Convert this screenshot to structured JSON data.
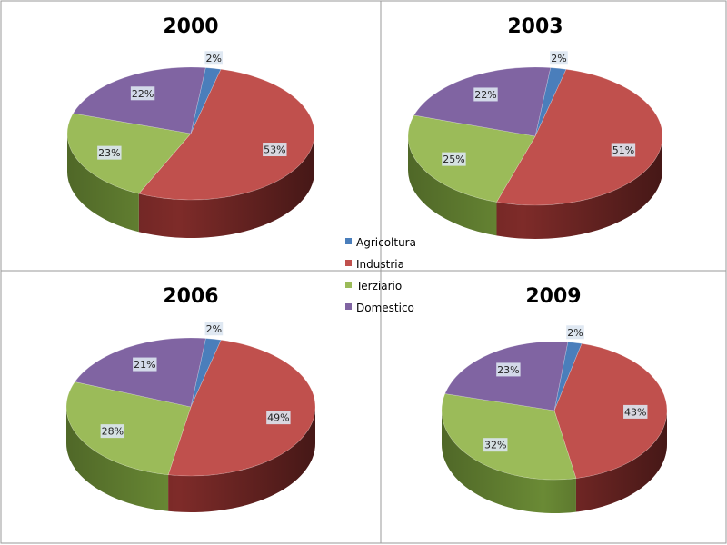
{
  "chart_data": [
    {
      "type": "pie",
      "title": "2000",
      "categories": [
        "Agricoltura",
        "Industria",
        "Terziario",
        "Domestico"
      ],
      "values": [
        2,
        53,
        23,
        22
      ],
      "labels": [
        "2%",
        "53%",
        "23%",
        "22%"
      ]
    },
    {
      "type": "pie",
      "title": "2003",
      "categories": [
        "Agricoltura",
        "Industria",
        "Terziario",
        "Domestico"
      ],
      "values": [
        2,
        51,
        25,
        22
      ],
      "labels": [
        "2%",
        "51%",
        "25%",
        "22%"
      ]
    },
    {
      "type": "pie",
      "title": "2006",
      "categories": [
        "Agricoltura",
        "Industria",
        "Terziario",
        "Domestico"
      ],
      "values": [
        2,
        49,
        28,
        21
      ],
      "labels": [
        "2%",
        "49%",
        "28%",
        "21%"
      ]
    },
    {
      "type": "pie",
      "title": "2009",
      "categories": [
        "Agricoltura",
        "Industria",
        "Terziario",
        "Domestico"
      ],
      "values": [
        2,
        43,
        32,
        23
      ],
      "labels": [
        "2%",
        "43%",
        "32%",
        "23%"
      ]
    }
  ],
  "legend": {
    "placement": "center",
    "items": [
      {
        "label": "Agricoltura",
        "color": "#4a7ebb"
      },
      {
        "label": "Industria",
        "color": "#c0504d"
      },
      {
        "label": "Terziario",
        "color": "#9bbb59"
      },
      {
        "label": "Domestico",
        "color": "#8064a2"
      }
    ]
  },
  "colors": {
    "Agricoltura": "#4a7ebb",
    "Industria": "#c0504d",
    "Terziario": "#9bbb59",
    "Domestico": "#8064a2",
    "side_Agricoltura": "#2c5383",
    "side_Industria": "#7e2b29",
    "side_Terziario": "#6a8a35",
    "side_Domestico": "#5a4578",
    "label_box": "#dbe5f1",
    "panel_border": "#9a9a9a"
  }
}
